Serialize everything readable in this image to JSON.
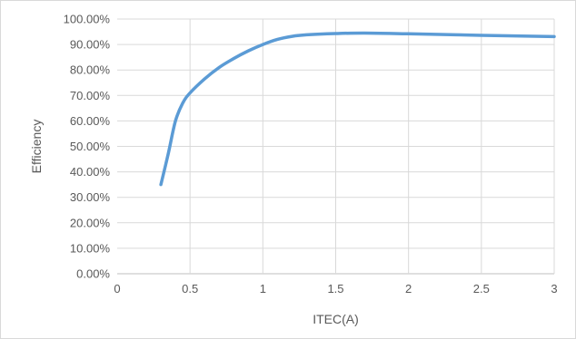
{
  "chart_data": {
    "type": "line",
    "title": "",
    "xlabel": "ITEC(A)",
    "ylabel": "Efficiency",
    "xlim": [
      0,
      3
    ],
    "ylim": [
      0,
      100
    ],
    "x_ticks": [
      0,
      0.5,
      1,
      1.5,
      2,
      2.5,
      3
    ],
    "x_tick_labels": [
      "0",
      "0.5",
      "1",
      "1.5",
      "2",
      "2.5",
      "3"
    ],
    "y_ticks": [
      0,
      10,
      20,
      30,
      40,
      50,
      60,
      70,
      80,
      90,
      100
    ],
    "y_tick_labels": [
      "0.00%",
      "10.00%",
      "20.00%",
      "30.00%",
      "40.00%",
      "50.00%",
      "60.00%",
      "70.00%",
      "80.00%",
      "90.00%",
      "100.00%"
    ],
    "grid": true,
    "legend": "none",
    "series": [
      {
        "color": "#5b9bd5",
        "x": [
          0.3,
          0.35,
          0.4,
          0.45,
          0.5,
          0.6,
          0.7,
          0.8,
          0.9,
          1.0,
          1.1,
          1.2,
          1.3,
          1.5,
          1.7,
          2.0,
          2.5,
          3.0
        ],
        "y": [
          35.0,
          47.0,
          60.0,
          67.0,
          71.0,
          76.5,
          81.0,
          84.5,
          87.5,
          90.0,
          92.0,
          93.2,
          93.8,
          94.3,
          94.5,
          94.2,
          93.6,
          93.1
        ]
      }
    ]
  }
}
